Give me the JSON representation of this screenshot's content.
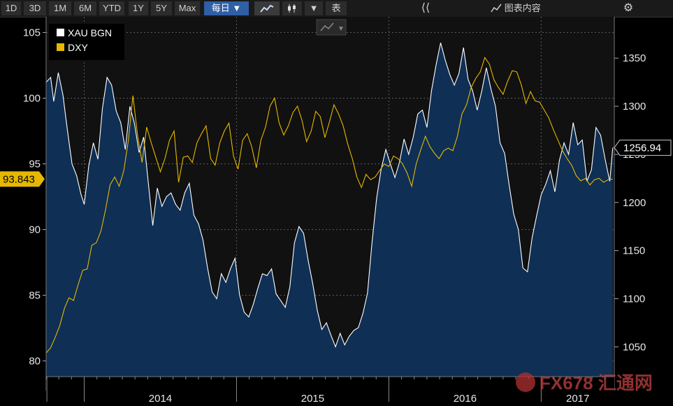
{
  "toolbar": {
    "ranges": [
      "1D",
      "3D",
      "1M",
      "6M",
      "YTD",
      "1Y",
      "5Y",
      "Max"
    ],
    "frequency": "每日",
    "table_label": "表",
    "chart_content_label": "图表内容"
  },
  "colors": {
    "gold": "#ffffff",
    "dxy": "#e6b800",
    "area": "#0f2f55",
    "plot_bg": "#111111",
    "label_bg_dxy": "#e6b800"
  },
  "watermark": "FX678 汇通网",
  "chart_data": {
    "type": "line",
    "title": "",
    "x_range": [
      2013.75,
      2017.48
    ],
    "year_ticks": [
      {
        "label": "2014",
        "x": 2014.0
      },
      {
        "label": "2015",
        "x": 2015.0
      },
      {
        "label": "2016",
        "x": 2016.0
      },
      {
        "label": "2017",
        "x": 2017.0
      }
    ],
    "y_left": {
      "label": "DXY",
      "ylim": [
        78.8,
        106.2
      ],
      "ticks": [
        "80",
        "85",
        "90",
        "95",
        "100",
        "105"
      ]
    },
    "y_right": {
      "label": "XAU BGN",
      "ylim": [
        1019.0,
        1393.0
      ],
      "ticks": [
        "1050",
        "1100",
        "1150",
        "1200",
        "1250",
        "1300",
        "1350"
      ]
    },
    "series": [
      {
        "name": "XAU BGN",
        "axis": "right",
        "style": "area",
        "last_value": "1256.94",
        "points": [
          [
            2013.75,
            1325
          ],
          [
            2013.78,
            1330
          ],
          [
            2013.8,
            1305
          ],
          [
            2013.83,
            1335
          ],
          [
            2013.86,
            1312
          ],
          [
            2013.89,
            1275
          ],
          [
            2013.92,
            1240
          ],
          [
            2013.95,
            1228
          ],
          [
            2013.98,
            1208
          ],
          [
            2014.0,
            1198
          ],
          [
            2014.03,
            1238
          ],
          [
            2014.06,
            1262
          ],
          [
            2014.09,
            1245
          ],
          [
            2014.12,
            1298
          ],
          [
            2014.15,
            1330
          ],
          [
            2014.18,
            1322
          ],
          [
            2014.21,
            1295
          ],
          [
            2014.24,
            1283
          ],
          [
            2014.27,
            1255
          ],
          [
            2014.3,
            1300
          ],
          [
            2014.33,
            1282
          ],
          [
            2014.36,
            1252
          ],
          [
            2014.39,
            1268
          ],
          [
            2014.42,
            1222
          ],
          [
            2014.45,
            1176
          ],
          [
            2014.48,
            1215
          ],
          [
            2014.51,
            1196
          ],
          [
            2014.54,
            1206
          ],
          [
            2014.57,
            1210
          ],
          [
            2014.6,
            1198
          ],
          [
            2014.63,
            1192
          ],
          [
            2014.66,
            1210
          ],
          [
            2014.69,
            1220
          ],
          [
            2014.72,
            1187
          ],
          [
            2014.75,
            1178
          ],
          [
            2014.78,
            1161
          ],
          [
            2014.81,
            1132
          ],
          [
            2014.84,
            1107
          ],
          [
            2014.87,
            1100
          ],
          [
            2014.9,
            1126
          ],
          [
            2014.93,
            1117
          ],
          [
            2014.96,
            1131
          ],
          [
            2014.99,
            1142
          ],
          [
            2015.02,
            1104
          ],
          [
            2015.05,
            1086
          ],
          [
            2015.08,
            1081
          ],
          [
            2015.11,
            1094
          ],
          [
            2015.14,
            1111
          ],
          [
            2015.17,
            1126
          ],
          [
            2015.2,
            1124
          ],
          [
            2015.23,
            1131
          ],
          [
            2015.26,
            1105
          ],
          [
            2015.29,
            1098
          ],
          [
            2015.32,
            1091
          ],
          [
            2015.35,
            1112
          ],
          [
            2015.38,
            1158
          ],
          [
            2015.41,
            1175
          ],
          [
            2015.44,
            1168
          ],
          [
            2015.47,
            1140
          ],
          [
            2015.5,
            1116
          ],
          [
            2015.53,
            1088
          ],
          [
            2015.56,
            1068
          ],
          [
            2015.59,
            1075
          ],
          [
            2015.62,
            1062
          ],
          [
            2015.65,
            1050
          ],
          [
            2015.68,
            1064
          ],
          [
            2015.71,
            1052
          ],
          [
            2015.74,
            1061
          ],
          [
            2015.77,
            1067
          ],
          [
            2015.8,
            1070
          ],
          [
            2015.83,
            1085
          ],
          [
            2015.86,
            1106
          ],
          [
            2015.89,
            1159
          ],
          [
            2015.92,
            1205
          ],
          [
            2015.95,
            1235
          ],
          [
            2015.98,
            1255
          ],
          [
            2016.01,
            1240
          ],
          [
            2016.04,
            1226
          ],
          [
            2016.07,
            1242
          ],
          [
            2016.1,
            1266
          ],
          [
            2016.13,
            1250
          ],
          [
            2016.16,
            1268
          ],
          [
            2016.19,
            1292
          ],
          [
            2016.22,
            1296
          ],
          [
            2016.25,
            1278
          ],
          [
            2016.28,
            1316
          ],
          [
            2016.31,
            1343
          ],
          [
            2016.34,
            1366
          ],
          [
            2016.37,
            1348
          ],
          [
            2016.4,
            1333
          ],
          [
            2016.43,
            1322
          ],
          [
            2016.46,
            1334
          ],
          [
            2016.49,
            1361
          ],
          [
            2016.52,
            1328
          ],
          [
            2016.55,
            1316
          ],
          [
            2016.58,
            1296
          ],
          [
            2016.61,
            1316
          ],
          [
            2016.64,
            1340
          ],
          [
            2016.67,
            1318
          ],
          [
            2016.7,
            1300
          ],
          [
            2016.73,
            1262
          ],
          [
            2016.76,
            1251
          ],
          [
            2016.79,
            1218
          ],
          [
            2016.82,
            1188
          ],
          [
            2016.85,
            1172
          ],
          [
            2016.88,
            1132
          ],
          [
            2016.91,
            1128
          ],
          [
            2016.94,
            1163
          ],
          [
            2016.97,
            1186
          ],
          [
            2017.0,
            1208
          ],
          [
            2017.03,
            1219
          ],
          [
            2017.06,
            1233
          ],
          [
            2017.09,
            1211
          ],
          [
            2017.12,
            1244
          ],
          [
            2017.15,
            1262
          ],
          [
            2017.18,
            1250
          ],
          [
            2017.21,
            1283
          ],
          [
            2017.24,
            1260
          ],
          [
            2017.27,
            1265
          ],
          [
            2017.3,
            1222
          ],
          [
            2017.33,
            1234
          ],
          [
            2017.36,
            1278
          ],
          [
            2017.39,
            1270
          ],
          [
            2017.42,
            1245
          ],
          [
            2017.45,
            1222
          ],
          [
            2017.47,
            1257
          ]
        ]
      },
      {
        "name": "DXY",
        "axis": "left",
        "style": "line",
        "last_value": "93.843",
        "points": [
          [
            2013.75,
            80.6
          ],
          [
            2013.78,
            81.0
          ],
          [
            2013.81,
            81.8
          ],
          [
            2013.84,
            82.7
          ],
          [
            2013.87,
            84.0
          ],
          [
            2013.9,
            84.8
          ],
          [
            2013.93,
            84.6
          ],
          [
            2013.96,
            85.8
          ],
          [
            2013.99,
            86.9
          ],
          [
            2014.02,
            87.0
          ],
          [
            2014.05,
            88.8
          ],
          [
            2014.08,
            89.0
          ],
          [
            2014.11,
            89.9
          ],
          [
            2014.14,
            91.5
          ],
          [
            2014.17,
            93.4
          ],
          [
            2014.2,
            94.0
          ],
          [
            2014.23,
            93.3
          ],
          [
            2014.26,
            94.5
          ],
          [
            2014.29,
            96.8
          ],
          [
            2014.32,
            100.2
          ],
          [
            2014.35,
            97.2
          ],
          [
            2014.38,
            95.1
          ],
          [
            2014.41,
            97.8
          ],
          [
            2014.44,
            96.6
          ],
          [
            2014.47,
            95.5
          ],
          [
            2014.5,
            94.4
          ],
          [
            2014.53,
            95.4
          ],
          [
            2014.56,
            96.8
          ],
          [
            2014.59,
            97.5
          ],
          [
            2014.62,
            93.6
          ],
          [
            2014.65,
            95.5
          ],
          [
            2014.68,
            95.6
          ],
          [
            2014.71,
            95.1
          ],
          [
            2014.74,
            96.6
          ],
          [
            2014.77,
            97.3
          ],
          [
            2014.8,
            97.9
          ],
          [
            2014.83,
            95.4
          ],
          [
            2014.86,
            94.9
          ],
          [
            2014.89,
            96.6
          ],
          [
            2014.92,
            97.5
          ],
          [
            2014.95,
            98.1
          ],
          [
            2014.98,
            95.6
          ],
          [
            2015.01,
            94.6
          ],
          [
            2015.04,
            96.8
          ],
          [
            2015.07,
            97.3
          ],
          [
            2015.1,
            96.3
          ],
          [
            2015.13,
            94.7
          ],
          [
            2015.16,
            96.8
          ],
          [
            2015.19,
            97.8
          ],
          [
            2015.22,
            99.4
          ],
          [
            2015.25,
            100.0
          ],
          [
            2015.28,
            98.1
          ],
          [
            2015.31,
            97.2
          ],
          [
            2015.34,
            97.9
          ],
          [
            2015.37,
            98.9
          ],
          [
            2015.4,
            99.4
          ],
          [
            2015.43,
            98.3
          ],
          [
            2015.46,
            96.7
          ],
          [
            2015.49,
            97.5
          ],
          [
            2015.52,
            99.0
          ],
          [
            2015.55,
            98.6
          ],
          [
            2015.58,
            97.0
          ],
          [
            2015.61,
            98.2
          ],
          [
            2015.64,
            99.5
          ],
          [
            2015.67,
            98.8
          ],
          [
            2015.7,
            97.9
          ],
          [
            2015.73,
            96.5
          ],
          [
            2015.76,
            95.4
          ],
          [
            2015.79,
            94.0
          ],
          [
            2015.82,
            93.2
          ],
          [
            2015.85,
            94.2
          ],
          [
            2015.88,
            93.8
          ],
          [
            2015.91,
            94.0
          ],
          [
            2015.94,
            94.5
          ],
          [
            2015.97,
            95.0
          ],
          [
            2016.0,
            94.8
          ],
          [
            2016.03,
            95.6
          ],
          [
            2016.06,
            95.4
          ],
          [
            2016.09,
            95.0
          ],
          [
            2016.12,
            94.3
          ],
          [
            2016.15,
            93.3
          ],
          [
            2016.18,
            95.0
          ],
          [
            2016.21,
            96.1
          ],
          [
            2016.24,
            97.1
          ],
          [
            2016.27,
            96.3
          ],
          [
            2016.3,
            95.8
          ],
          [
            2016.33,
            95.4
          ],
          [
            2016.36,
            96.0
          ],
          [
            2016.39,
            96.2
          ],
          [
            2016.42,
            96.0
          ],
          [
            2016.45,
            97.1
          ],
          [
            2016.48,
            98.8
          ],
          [
            2016.51,
            99.5
          ],
          [
            2016.54,
            100.8
          ],
          [
            2016.57,
            101.5
          ],
          [
            2016.6,
            102.0
          ],
          [
            2016.63,
            103.1
          ],
          [
            2016.66,
            102.6
          ],
          [
            2016.69,
            101.4
          ],
          [
            2016.72,
            100.8
          ],
          [
            2016.75,
            100.3
          ],
          [
            2016.78,
            101.3
          ],
          [
            2016.81,
            102.1
          ],
          [
            2016.84,
            102.0
          ],
          [
            2016.87,
            101.0
          ],
          [
            2016.9,
            99.6
          ],
          [
            2016.93,
            100.5
          ],
          [
            2016.96,
            99.8
          ],
          [
            2016.99,
            99.7
          ],
          [
            2017.02,
            99.1
          ],
          [
            2017.05,
            98.5
          ],
          [
            2017.08,
            97.6
          ],
          [
            2017.11,
            96.8
          ],
          [
            2017.14,
            96.0
          ],
          [
            2017.17,
            95.4
          ],
          [
            2017.2,
            94.9
          ],
          [
            2017.23,
            94.1
          ],
          [
            2017.26,
            93.7
          ],
          [
            2017.29,
            93.9
          ],
          [
            2017.32,
            93.4
          ],
          [
            2017.35,
            93.8
          ],
          [
            2017.38,
            93.9
          ],
          [
            2017.41,
            93.6
          ],
          [
            2017.44,
            93.8
          ],
          [
            2017.47,
            93.84
          ]
        ]
      }
    ],
    "legend": [
      {
        "name": "XAU BGN",
        "color": "#ffffff"
      },
      {
        "name": "DXY",
        "color": "#e6b800"
      }
    ],
    "value_labels": {
      "left": "93.843",
      "right": "1256.94"
    }
  }
}
